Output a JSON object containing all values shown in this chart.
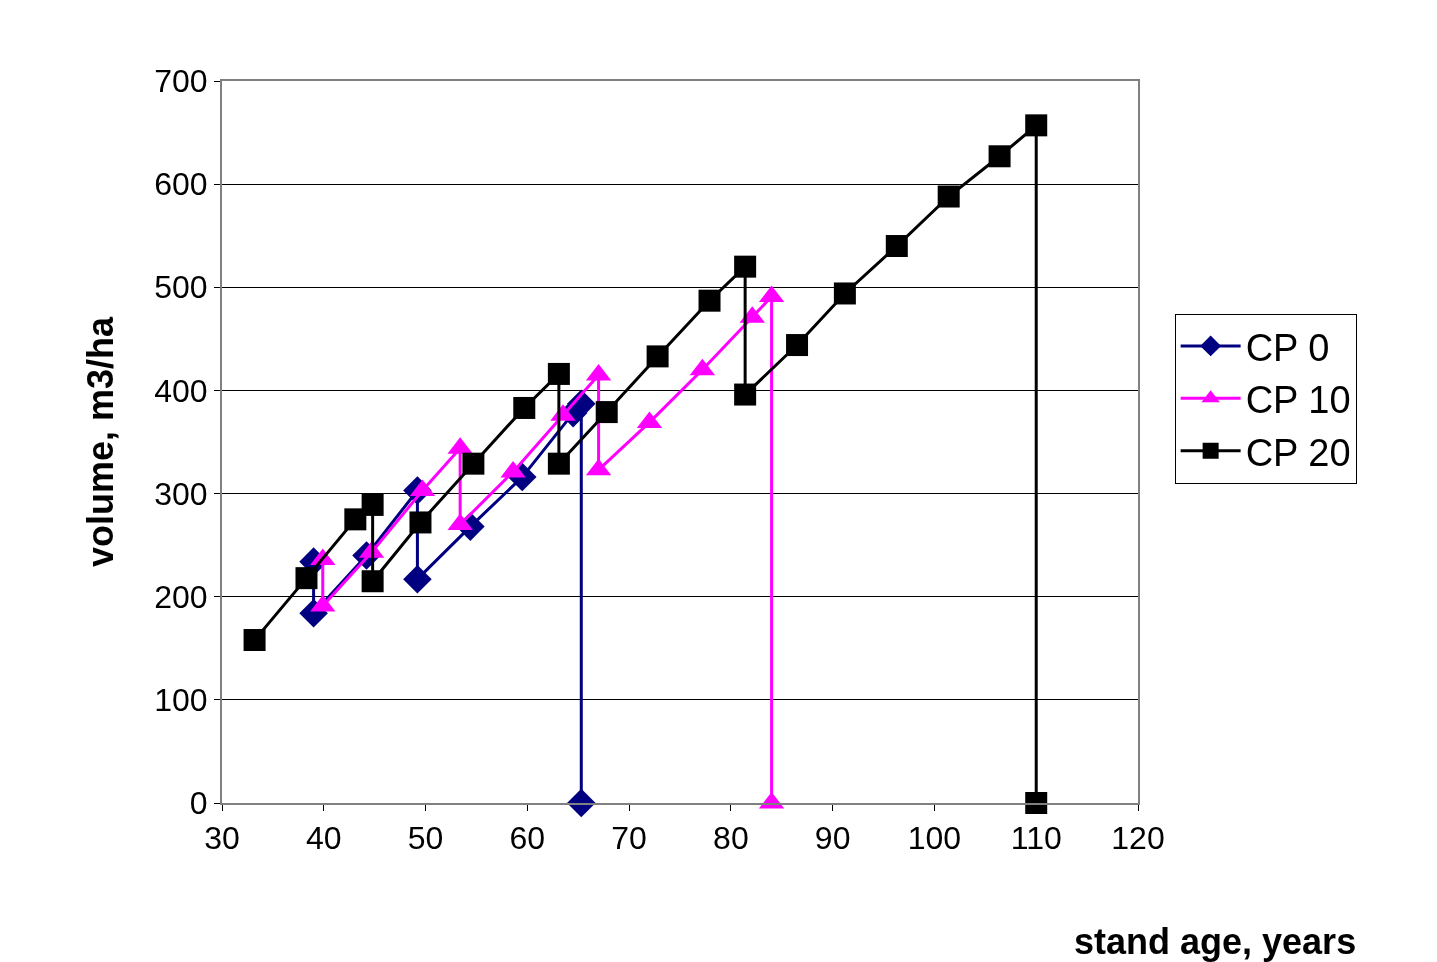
{
  "chart_data": {
    "type": "line",
    "xlabel": "stand age, years",
    "ylabel": "volume, m3/ha",
    "xlim": [
      30,
      120
    ],
    "xticks": [
      30,
      40,
      50,
      60,
      70,
      80,
      90,
      100,
      110,
      120
    ],
    "ylim": [
      0,
      700
    ],
    "yticks": [
      0,
      100,
      200,
      300,
      400,
      500,
      600,
      700
    ],
    "grid": "y",
    "legend": "right",
    "series": [
      {
        "name": "CP 0",
        "color": "#000080",
        "marker": "diamond",
        "x": [
          39,
          39,
          44.2,
          49.2,
          49.2,
          54.4,
          59.5,
          64.5,
          65.3,
          65.3
        ],
        "values": [
          234,
          184,
          240,
          303,
          217,
          268,
          316,
          378,
          387,
          0
        ]
      },
      {
        "name": "CP 10",
        "color": "#ff00ff",
        "marker": "triangle",
        "x": [
          39.9,
          39.9,
          44.7,
          49.7,
          53.4,
          53.4,
          58.6,
          63.5,
          67.0,
          67.0,
          72.0,
          77.2,
          82.1,
          84.0,
          84.0
        ],
        "values": [
          236,
          191,
          243,
          303,
          344,
          270,
          321,
          376,
          415,
          323,
          369,
          420,
          471,
          491,
          0
        ]
      },
      {
        "name": "CP 20",
        "color": "#000000",
        "marker": "square",
        "x": [
          33.2,
          38.3,
          43.1,
          44.8,
          44.8,
          49.5,
          54.7,
          59.7,
          63.1,
          63.1,
          67.8,
          72.8,
          77.9,
          81.4,
          81.4,
          86.5,
          91.2,
          96.3,
          101.4,
          106.4,
          110.0,
          110.0
        ],
        "values": [
          158,
          218,
          275,
          289,
          215,
          272,
          329,
          383,
          416,
          329,
          379,
          433,
          487,
          520,
          396,
          444,
          494,
          540,
          588,
          627,
          657,
          0
        ]
      }
    ]
  }
}
